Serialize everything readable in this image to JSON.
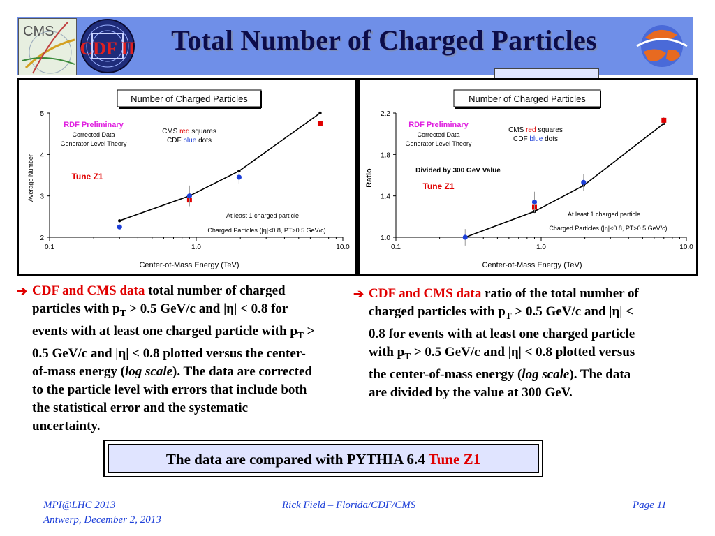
{
  "slide": {
    "title": "Total Number of Charged Particles",
    "logos": {
      "left_logo": "CMS",
      "center_logo": "CDF II",
      "right_logo": "globe-icon"
    }
  },
  "left_panel": {
    "chart_title": "Number of Charged Particles",
    "label_rdf": "RDF Preliminary",
    "label_corrected": "Corrected Data",
    "label_generator": "Generator Level Theory",
    "label_cms": "CMS",
    "label_cms_color": "red",
    "label_cms_suffix": "squares",
    "label_cdf": "CDF",
    "label_cdf_color": "blue",
    "label_cdf_suffix": "dots",
    "label_tune": "Tune Z1",
    "label_atleast": "At least 1 charged particle",
    "label_cut": "Charged Particles (|η|<0.8, PT>0.5 GeV/c)",
    "xlabel": "Center-of-Mass Energy  (TeV)",
    "ylabel": "Average Number"
  },
  "right_panel": {
    "chart_title": "Number of Charged Particles",
    "label_rdf": "RDF Preliminary",
    "label_corrected": "Corrected Data",
    "label_generator": "Generator Level Theory",
    "label_cms": "CMS",
    "label_cms_color": "red",
    "label_cms_suffix": "squares",
    "label_cdf": "CDF",
    "label_cdf_color": "blue",
    "label_cdf_suffix": "dots",
    "label_divided": "Divided by 300 GeV Value",
    "label_tune": "Tune Z1",
    "label_atleast": "At least 1 charged particle",
    "label_cut": "Charged Particles (|η|<0.8, PT>0.5 GeV/c)",
    "xlabel": "Center-of-Mass Energy  (TeV)",
    "ylabel": "Ratio"
  },
  "chart_data": [
    {
      "type": "scatter",
      "title": "Number of Charged Particles",
      "xlabel": "Center-of-Mass Energy  (TeV)",
      "ylabel": "Average Number",
      "x_scale": "log",
      "xlim": [
        0.1,
        10.0
      ],
      "ylim": [
        2,
        5
      ],
      "x_ticks": [
        "0.1",
        "1.0",
        "10.0"
      ],
      "y_ticks": [
        "2",
        "3",
        "4",
        "5"
      ],
      "series": [
        {
          "name": "Tune Z1",
          "style": "line",
          "color": "#000000",
          "x": [
            0.3,
            0.9,
            1.96,
            7.0
          ],
          "y": [
            2.4,
            3.0,
            3.6,
            5.0
          ]
        },
        {
          "name": "CMS",
          "style": "square",
          "color": "#e00000",
          "x": [
            0.9,
            7.0
          ],
          "y": [
            2.9,
            4.75
          ],
          "yerr": [
            0.05,
            0.05
          ]
        },
        {
          "name": "CDF",
          "style": "dot",
          "color": "#1d3fd8",
          "x": [
            0.3,
            0.9,
            1.96
          ],
          "y": [
            2.25,
            3.0,
            3.45
          ],
          "yerr": [
            0.05,
            0.25,
            0.15
          ]
        }
      ]
    },
    {
      "type": "scatter",
      "title": "Number of Charged Particles",
      "xlabel": "Center-of-Mass Energy  (TeV)",
      "ylabel": "Ratio",
      "x_scale": "log",
      "xlim": [
        0.1,
        10.0
      ],
      "ylim": [
        1.0,
        2.2
      ],
      "x_ticks": [
        "0.1",
        "1.0",
        "10.0"
      ],
      "y_ticks": [
        "1.0",
        "1.4",
        "1.8",
        "2.2"
      ],
      "series": [
        {
          "name": "Tune Z1",
          "style": "line",
          "color": "#000000",
          "x": [
            0.3,
            0.9,
            1.96,
            7.0
          ],
          "y": [
            1.0,
            1.25,
            1.5,
            2.1
          ]
        },
        {
          "name": "CMS",
          "style": "square",
          "color": "#e00000",
          "x": [
            0.9,
            7.0
          ],
          "y": [
            1.29,
            2.13
          ],
          "yerr": [
            0.03,
            0.03
          ]
        },
        {
          "name": "CDF",
          "style": "dot",
          "color": "#1d3fd8",
          "x": [
            0.3,
            0.9,
            1.96
          ],
          "y": [
            1.0,
            1.34,
            1.53
          ],
          "yerr": [
            0.08,
            0.1,
            0.08
          ]
        }
      ]
    }
  ],
  "bullets": {
    "left": {
      "highlight": "CDF and CMS data",
      "lines": [
        " total number of charged",
        "particles with p",
        "T",
        " > 0.5 GeV/c and |η| < 0.8 for",
        "events with at least one charged particle with p",
        "T",
        " >",
        "0.5 GeV/c and |η| < 0.8 plotted versus the center-",
        "of-mass energy (",
        "log scale",
        "). The data are corrected",
        "to the particle level with errors that include both",
        "the statistical error and the systematic",
        "uncertainty."
      ]
    },
    "right": {
      "highlight": "CDF and CMS data",
      "lines": [
        " ratio of the total number of",
        "charged particles with p",
        "T",
        " > 0.5 GeV/c and |η| <",
        "0.8 for events with at least one charged particle",
        "with p",
        "T",
        " > 0.5 GeV/c and |η| < 0.8 plotted versus",
        "the center-of-mass energy (",
        "log scale",
        "). The data",
        "are divided by the value at 300 GeV."
      ]
    }
  },
  "conclusion": {
    "text": "The data are compared with PYTHIA 6.4 ",
    "highlight": "Tune Z1"
  },
  "footer": {
    "left_line1": "MPI@LHC 2013",
    "left_line2": "Antwerp, December 2, 2013",
    "center": "Rick Field – Florida/CDF/CMS",
    "right": "Page 11"
  }
}
